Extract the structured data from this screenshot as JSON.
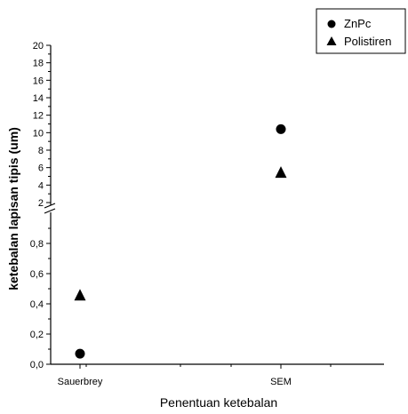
{
  "chart_data": {
    "type": "scatter",
    "categories": [
      "Sauerbrey",
      "SEM"
    ],
    "xlabel": "Penentuan ketebalan",
    "ylabel": "ketebalan lapisan tipis (um)",
    "y_axis_broken": true,
    "ylim_lower": [
      0,
      1
    ],
    "ylim_upper": [
      2,
      20
    ],
    "yticks_lower": [
      "0,0",
      "0,2",
      "0,4",
      "0,6",
      "0,8"
    ],
    "yticks_upper": [
      "2",
      "4",
      "6",
      "8",
      "10",
      "12",
      "14",
      "16",
      "18",
      "20"
    ],
    "series": [
      {
        "name": "ZnPc",
        "marker": "circle",
        "values": [
          0.07,
          10.4
        ]
      },
      {
        "name": "Polistiren",
        "marker": "triangle",
        "values": [
          0.46,
          5.5
        ]
      }
    ],
    "legend_position": "top-right"
  }
}
